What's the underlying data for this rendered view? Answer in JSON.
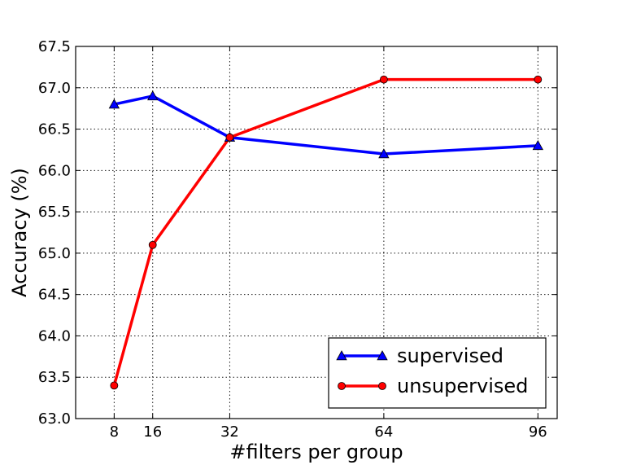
{
  "chart_data": {
    "type": "line",
    "xlabel": "#filters per group",
    "ylabel": "Accuracy (%)",
    "xlim": [
      0,
      100
    ],
    "ylim": [
      63.0,
      67.5
    ],
    "xticks": [
      8,
      16,
      32,
      64,
      96
    ],
    "yticks": [
      63.0,
      63.5,
      64.0,
      64.5,
      65.0,
      65.5,
      66.0,
      66.5,
      67.0,
      67.5
    ],
    "grid": true,
    "legend_position": "bottom-right",
    "x": [
      8,
      16,
      32,
      64,
      96
    ],
    "series": [
      {
        "name": "supervised",
        "values": [
          66.8,
          66.9,
          66.4,
          66.2,
          66.3
        ],
        "color": "#0000ff",
        "marker": "triangle"
      },
      {
        "name": "unsupervised",
        "values": [
          63.4,
          65.1,
          66.4,
          67.1,
          67.1
        ],
        "color": "#ff0000",
        "marker": "circle"
      }
    ]
  }
}
